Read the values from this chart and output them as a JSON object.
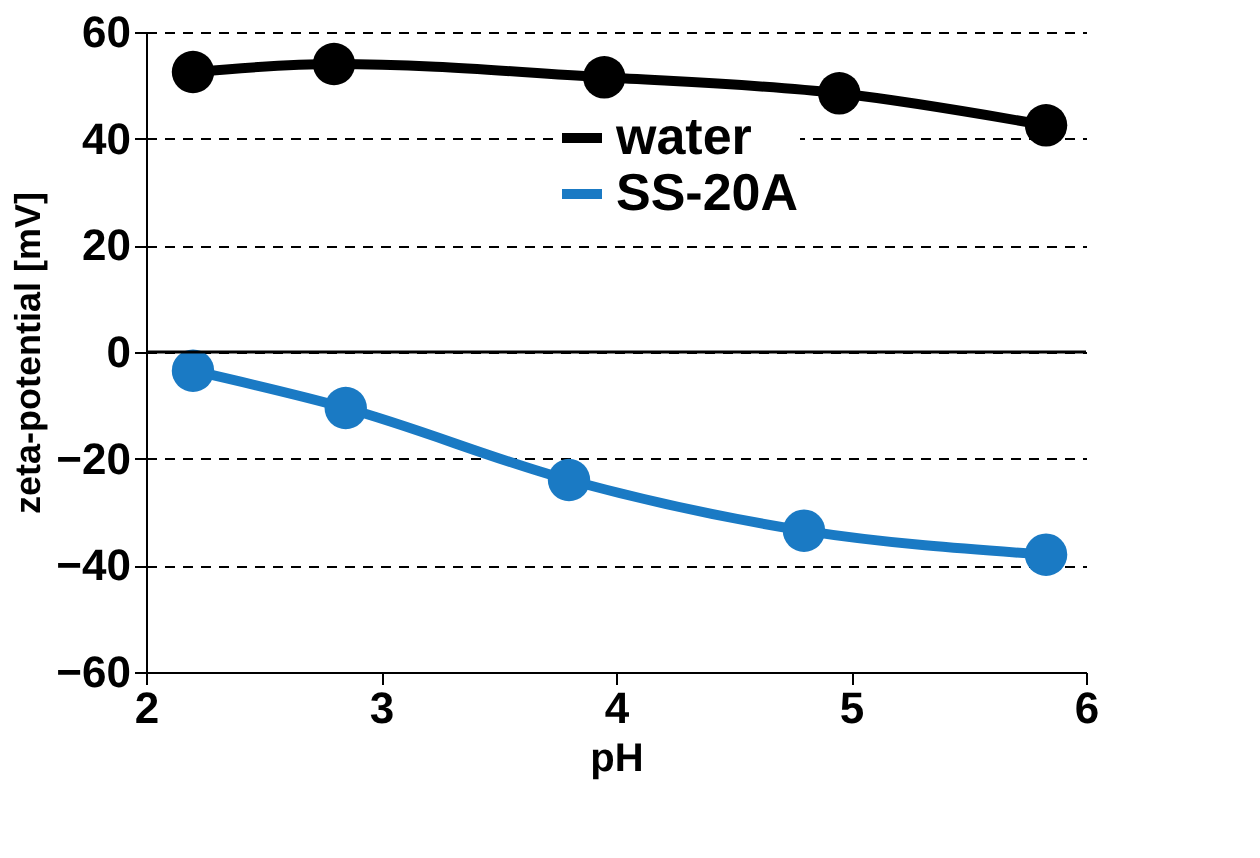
{
  "chart_data": {
    "type": "line",
    "xlabel": "pH",
    "ylabel": "zeta-potential [mV]",
    "xlim": [
      2,
      6
    ],
    "xticks": [
      2,
      3,
      4,
      5,
      6
    ],
    "ylim": [
      -60,
      60
    ],
    "yticks": [
      -60,
      -40,
      -20,
      0,
      20,
      40,
      60
    ],
    "grid": "y",
    "legend": "top right",
    "marker": "circle",
    "line_style": "solid",
    "ref_lines": [
      {
        "axis": "y",
        "value": 0,
        "color": "#000000",
        "line_style": "solid"
      }
    ],
    "series": [
      {
        "name": "water",
        "color": "#000000",
        "x": [
          2.2,
          2.8,
          3.95,
          4.95,
          5.83
        ],
        "values": [
          52.5,
          54,
          51.5,
          48.5,
          42.5
        ]
      },
      {
        "name": "SS-20A",
        "color": "#1a7ac4",
        "x": [
          2.2,
          2.85,
          3.8,
          4.8,
          5.83
        ],
        "values": [
          -3.5,
          -10.5,
          -24,
          -33.5,
          -38
        ]
      }
    ]
  }
}
